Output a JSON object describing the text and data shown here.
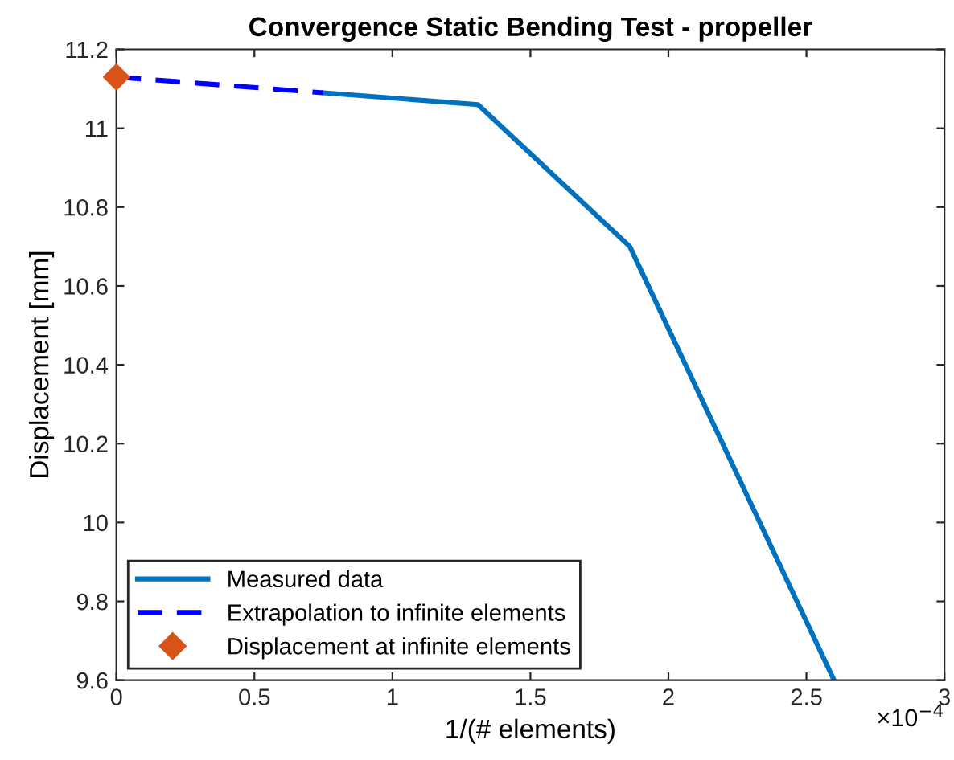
{
  "chart_data": {
    "type": "line",
    "title": "Convergence Static Bending Test - propeller",
    "xlabel": "1/(# elements)",
    "ylabel": "Displacement [mm]",
    "series": [
      {
        "name": "Measured data",
        "color": "#0072bd",
        "line_style": "solid",
        "x": [
          0.75,
          1.31,
          1.86,
          2.6
        ],
        "values": [
          11.09,
          11.06,
          10.7,
          9.6
        ]
      },
      {
        "name": "Extrapolation to infinite elements",
        "color": "#0000ff",
        "line_style": "dashed",
        "x": [
          0,
          0.75
        ],
        "values": [
          11.13,
          11.09
        ]
      },
      {
        "name": "Displacement at infinite elements",
        "type": "scatter",
        "color": "#d95319",
        "marker": "diamond",
        "x": [
          0
        ],
        "values": [
          11.13
        ]
      }
    ],
    "xlim": [
      0,
      3
    ],
    "xticks": [
      0,
      0.5,
      1,
      1.5,
      2,
      2.5,
      3
    ],
    "ylim": [
      9.6,
      11.2
    ],
    "yticks": [
      9.6,
      9.8,
      10,
      10.2,
      10.4,
      10.6,
      10.8,
      11,
      11.2
    ],
    "annotations": [
      "×10$^{−4}$"
    ],
    "grid": false,
    "legend": "bottom left"
  }
}
